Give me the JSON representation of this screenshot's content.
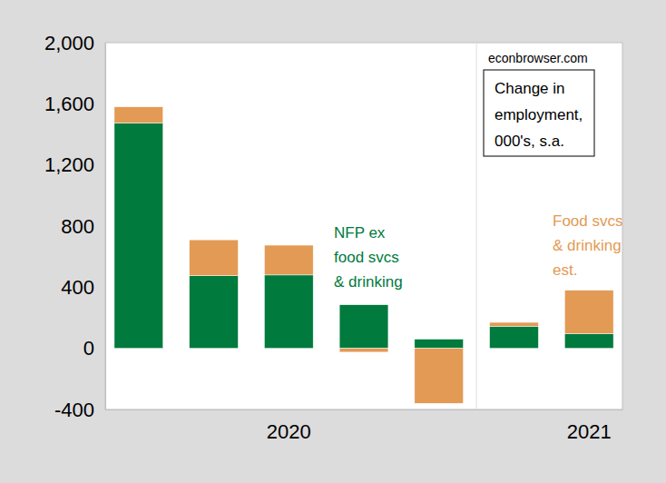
{
  "chart_data": {
    "type": "bar",
    "stacked": true,
    "title": "Change in employment, 000's, s.a.",
    "annotations": [
      "econbrowser.com"
    ],
    "categories": [
      null,
      null,
      "2020",
      null,
      null,
      null,
      "2021"
    ],
    "series": [
      {
        "name": "NFP ex food svcs & drinking",
        "color": "#007a3d",
        "values": [
          1475,
          475,
          480,
          285,
          60,
          145,
          95
        ]
      },
      {
        "name": "Food svcs & drinking est.",
        "color": "#e39a55",
        "values": [
          105,
          235,
          195,
          -25,
          -360,
          25,
          285
        ]
      }
    ],
    "ylim": [
      -400,
      2000
    ],
    "yticks": [
      -400,
      0,
      400,
      800,
      {
        "value": 1200,
        "label": "1,200"
      },
      {
        "value": 1600,
        "label": "1,600"
      },
      {
        "value": 2000,
        "label": "2,000"
      }
    ],
    "grid": false
  }
}
